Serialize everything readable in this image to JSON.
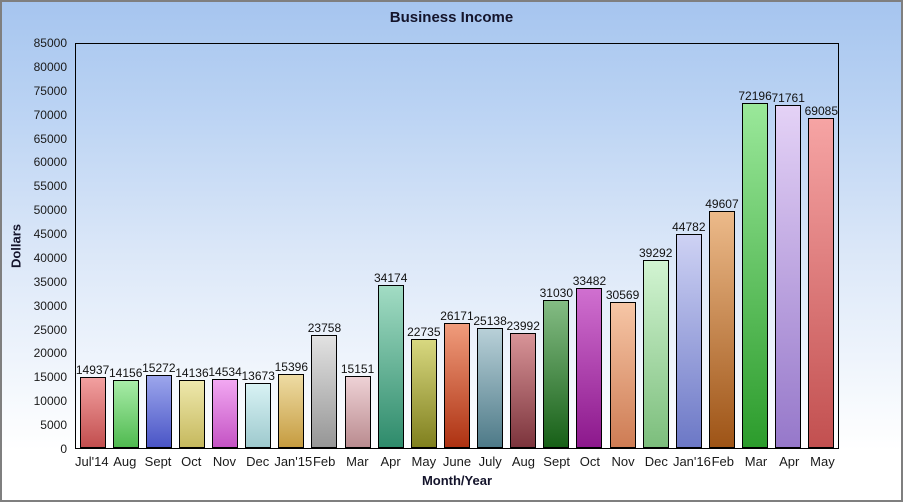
{
  "title": "Business Income",
  "colors": {
    "frame_border": "#7f7f7f",
    "background_top": "#a6c5ef",
    "background_bottom": "#ffffff",
    "plot_border": "#000000",
    "text": "#1a1a1a"
  },
  "chart_data": {
    "type": "bar",
    "title": "Business Income",
    "xlabel": "Month/Year",
    "ylabel": "Dollars",
    "ylim": [
      0,
      85000
    ],
    "ytick_step": 5000,
    "grid": false,
    "legend": false,
    "categories": [
      "Jul'14",
      "Aug",
      "Sept",
      "Oct",
      "Nov",
      "Dec",
      "Jan'15",
      "Feb",
      "Mar",
      "Apr",
      "May",
      "June",
      "July",
      "Aug",
      "Sept",
      "Oct",
      "Nov",
      "Dec",
      "Jan'16",
      "Feb",
      "Mar",
      "Apr",
      "May"
    ],
    "values": [
      14937,
      14156,
      15272,
      14136,
      14534,
      13673,
      15396,
      23758,
      15151,
      34174,
      22735,
      26171,
      25138,
      23992,
      31030,
      33482,
      30569,
      39292,
      44782,
      49607,
      72196,
      71761,
      69085
    ],
    "bar_gradients": [
      {
        "top": "#f2a0a0",
        "bottom": "#c24e4e"
      },
      {
        "top": "#a8eca8",
        "bottom": "#50ba50"
      },
      {
        "top": "#9ca6ec",
        "bottom": "#4a55c6"
      },
      {
        "top": "#eee8ac",
        "bottom": "#c6b95e"
      },
      {
        "top": "#f2a8f2",
        "bottom": "#c453c4"
      },
      {
        "top": "#d8f2f4",
        "bottom": "#9ecace"
      },
      {
        "top": "#eedca4",
        "bottom": "#c69c40"
      },
      {
        "top": "#e2e2e2",
        "bottom": "#969696"
      },
      {
        "top": "#eed2d6",
        "bottom": "#ba8c90"
      },
      {
        "top": "#a2dcc4",
        "bottom": "#2e8b6b"
      },
      {
        "top": "#d8d880",
        "bottom": "#80801e"
      },
      {
        "top": "#f09c7c",
        "bottom": "#ae3212"
      },
      {
        "top": "#b8d0d8",
        "bottom": "#4e7a88"
      },
      {
        "top": "#d89498",
        "bottom": "#7c343c"
      },
      {
        "top": "#84bc84",
        "bottom": "#176017"
      },
      {
        "top": "#d070d0",
        "bottom": "#8c188c"
      },
      {
        "top": "#f6c6a6",
        "bottom": "#ce7c54"
      },
      {
        "top": "#d2f4d2",
        "bottom": "#7cbe7c"
      },
      {
        "top": "#ced2f4",
        "bottom": "#6c78c6"
      },
      {
        "top": "#ecba8a",
        "bottom": "#9e5416"
      },
      {
        "top": "#9ae89a",
        "bottom": "#2c9c2c"
      },
      {
        "top": "#e4d2f6",
        "bottom": "#9678ca"
      },
      {
        "top": "#f6a4a4",
        "bottom": "#c25050"
      }
    ]
  }
}
